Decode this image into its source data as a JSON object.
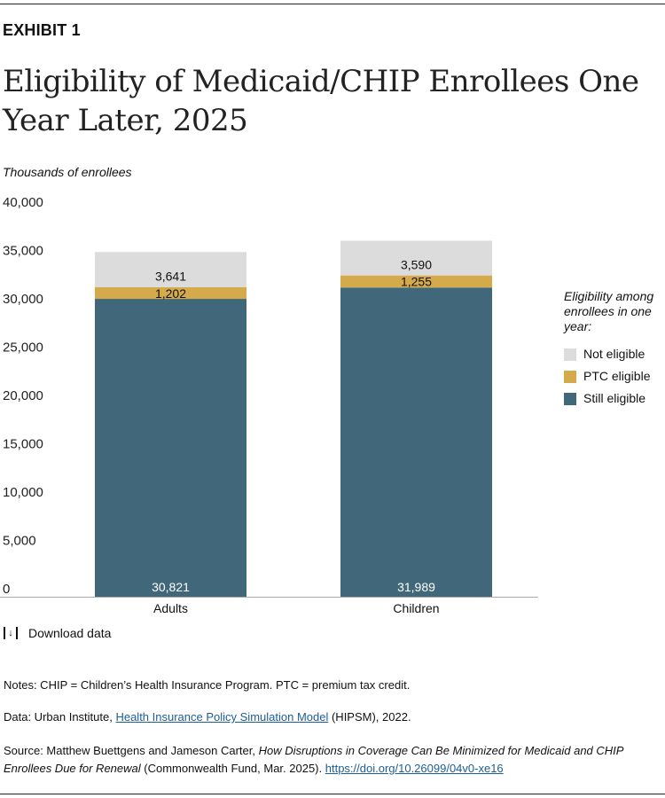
{
  "exhibit": "EXHIBIT 1",
  "title": "Eligibility of Medicaid/CHIP Enrollees One Year Later, 2025",
  "chart_data": {
    "type": "bar",
    "stacked": true,
    "ylabel": "Thousands of enrollees",
    "ylim": [
      0,
      40000
    ],
    "yticks": [
      "0",
      "5,000",
      "10,000",
      "15,000",
      "20,000",
      "25,000",
      "30,000",
      "35,000",
      "40,000"
    ],
    "categories": [
      "Adults",
      "Children"
    ],
    "series": [
      {
        "name": "Still eligible",
        "color": "#40687a",
        "values": [
          30821,
          31989
        ],
        "labels": [
          "30,821",
          "31,989"
        ]
      },
      {
        "name": "PTC eligible",
        "color": "#d4aa4a",
        "values": [
          1202,
          1255
        ],
        "labels": [
          "1,202",
          "1,255"
        ]
      },
      {
        "name": "Not eligible",
        "color": "#dcdcdc",
        "values": [
          3641,
          3590
        ],
        "labels": [
          "3,641",
          "3,590"
        ]
      }
    ],
    "legend_title": "Eligibility among enrollees in one year:",
    "legend_placement": "right"
  },
  "legend": {
    "title": "Eligibility among enrollees in one year:",
    "items": [
      {
        "label": "Not eligible",
        "color": "#dcdcdc"
      },
      {
        "label": "PTC eligible",
        "color": "#d4aa4a"
      },
      {
        "label": "Still eligible",
        "color": "#40687a"
      }
    ]
  },
  "download": {
    "icon": "download-icon",
    "label": "Download data"
  },
  "notes": "Notes: CHIP = Children’s Health Insurance Program. PTC = premium tax credit.",
  "data_source": {
    "prefix": "Data: Urban Institute, ",
    "link": "Health Insurance Policy Simulation Model",
    "suffix": " (HIPSM), 2022."
  },
  "source": {
    "prefix": "Source: Matthew Buettgens and Jameson Carter, ",
    "italic": "How Disruptions in Coverage Can Be Minimized for Medicaid and CHIP Enrollees Due for Renewal",
    "middle": " (Commonwealth Fund, Mar. 2025). ",
    "link": "https://doi.org/10.26099/04v0-xe16"
  }
}
